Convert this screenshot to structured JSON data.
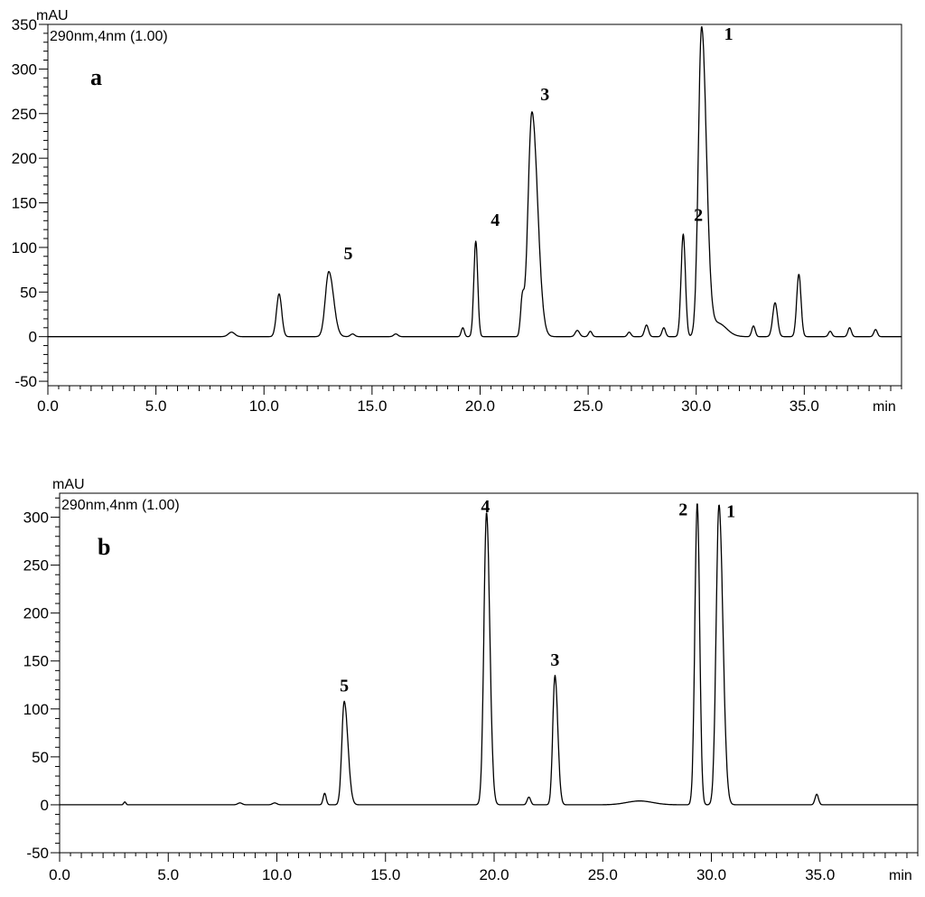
{
  "chart_data": [
    {
      "type": "line",
      "panel_label": "a",
      "detector_label": "290nm,4nm (1.00)",
      "ylabel": "mAU",
      "xlabel": "min",
      "xlim": [
        0,
        39.5
      ],
      "ylim": [
        -55,
        350
      ],
      "x_ticks": [
        0,
        5,
        10,
        15,
        20,
        25,
        30,
        35
      ],
      "x_tick_labels": [
        "0.0",
        "5.0",
        "10.0",
        "15.0",
        "20.0",
        "25.0",
        "30.0",
        "35.0"
      ],
      "y_ticks": [
        -50,
        0,
        50,
        100,
        150,
        200,
        250,
        300,
        350
      ],
      "y_tick_labels": [
        "-50",
        "0",
        "50",
        "100",
        "150",
        "200",
        "250",
        "300",
        "350"
      ],
      "baseline": 0,
      "peaks": [
        {
          "t": 8.5,
          "h": 5,
          "w": 0.15
        },
        {
          "t": 10.7,
          "h": 48,
          "w": 0.12
        },
        {
          "t": 13.0,
          "h": 73,
          "w": 0.16,
          "tail": 0.22
        },
        {
          "t": 14.1,
          "h": 3,
          "w": 0.1
        },
        {
          "t": 16.1,
          "h": 3,
          "w": 0.1
        },
        {
          "t": 19.2,
          "h": 10,
          "w": 0.07
        },
        {
          "t": 19.8,
          "h": 107,
          "w": 0.09
        },
        {
          "t": 21.95,
          "h": 38,
          "w": 0.08
        },
        {
          "t": 22.4,
          "h": 252,
          "w": 0.18,
          "tail": 0.26
        },
        {
          "t": 24.5,
          "h": 7,
          "w": 0.1
        },
        {
          "t": 25.1,
          "h": 6,
          "w": 0.08
        },
        {
          "t": 26.9,
          "h": 5,
          "w": 0.08
        },
        {
          "t": 27.7,
          "h": 13,
          "w": 0.09
        },
        {
          "t": 28.5,
          "h": 10,
          "w": 0.08
        },
        {
          "t": 29.4,
          "h": 115,
          "w": 0.1
        },
        {
          "t": 30.25,
          "h": 345,
          "w": 0.15,
          "tail": 0.22
        },
        {
          "t": 31.0,
          "h": 15,
          "w": 0.4
        },
        {
          "t": 32.65,
          "h": 12,
          "w": 0.08
        },
        {
          "t": 33.65,
          "h": 38,
          "w": 0.11
        },
        {
          "t": 34.75,
          "h": 70,
          "w": 0.1
        },
        {
          "t": 36.2,
          "h": 6,
          "w": 0.08
        },
        {
          "t": 37.1,
          "h": 10,
          "w": 0.08
        },
        {
          "t": 38.3,
          "h": 8,
          "w": 0.08
        }
      ],
      "peak_labels": [
        {
          "text": "1",
          "t": 31.5,
          "y": 333
        },
        {
          "text": "2",
          "t": 30.1,
          "y": 130
        },
        {
          "text": "3",
          "t": 23.0,
          "y": 265
        },
        {
          "text": "4",
          "t": 20.7,
          "y": 124
        },
        {
          "text": "5",
          "t": 13.9,
          "y": 87
        }
      ]
    },
    {
      "type": "line",
      "panel_label": "b",
      "detector_label": "290nm,4nm (1.00)",
      "ylabel": "mAU",
      "xlabel": "min",
      "xlim": [
        0,
        39.5
      ],
      "ylim": [
        -50,
        325
      ],
      "x_ticks": [
        0,
        5,
        10,
        15,
        20,
        25,
        30,
        35
      ],
      "x_tick_labels": [
        "0.0",
        "5.0",
        "10.0",
        "15.0",
        "20.0",
        "25.0",
        "30.0",
        "35.0"
      ],
      "y_ticks": [
        -50,
        0,
        50,
        100,
        150,
        200,
        250,
        300
      ],
      "y_tick_labels": [
        "-50",
        "0",
        "50",
        "100",
        "150",
        "200",
        "250",
        "300"
      ],
      "baseline": 0,
      "peaks": [
        {
          "t": 3.0,
          "h": 3,
          "w": 0.05
        },
        {
          "t": 8.3,
          "h": 2,
          "w": 0.1
        },
        {
          "t": 9.9,
          "h": 2,
          "w": 0.1
        },
        {
          "t": 12.2,
          "h": 12,
          "w": 0.07
        },
        {
          "t": 13.1,
          "h": 108,
          "w": 0.11,
          "tail": 0.17
        },
        {
          "t": 19.65,
          "h": 305,
          "w": 0.12,
          "tail": 0.15
        },
        {
          "t": 21.6,
          "h": 8,
          "w": 0.08
        },
        {
          "t": 22.8,
          "h": 135,
          "w": 0.1,
          "tail": 0.13
        },
        {
          "t": 26.7,
          "h": 4,
          "w": 0.6
        },
        {
          "t": 29.35,
          "h": 315,
          "w": 0.11
        },
        {
          "t": 30.35,
          "h": 313,
          "w": 0.13,
          "tail": 0.18
        },
        {
          "t": 34.85,
          "h": 11,
          "w": 0.08
        }
      ],
      "peak_labels": [
        {
          "text": "1",
          "t": 30.9,
          "y": 300
        },
        {
          "text": "2",
          "t": 28.7,
          "y": 302
        },
        {
          "text": "3",
          "t": 22.8,
          "y": 145
        },
        {
          "text": "4",
          "t": 19.6,
          "y": 305
        },
        {
          "text": "5",
          "t": 13.1,
          "y": 118
        }
      ]
    }
  ]
}
